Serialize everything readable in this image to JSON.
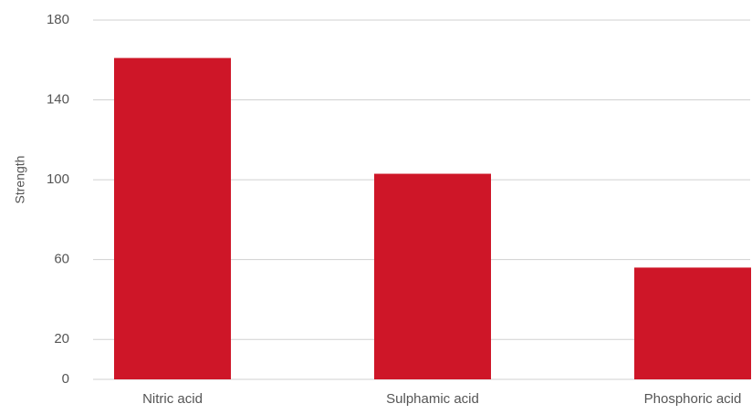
{
  "chart_data": {
    "type": "bar",
    "title": "",
    "xlabel": "",
    "ylabel": "Strength",
    "categories": [
      "Nitric acid",
      "Sulphamic acid",
      "Phosphoric acid"
    ],
    "values": [
      161,
      103,
      56
    ],
    "ylim": [
      0,
      180
    ],
    "yticks": [
      0,
      20,
      60,
      100,
      140,
      180
    ],
    "grid": true,
    "legend": "none",
    "bar_color": "#CE1628",
    "grid_color": "#d0d0d0"
  }
}
